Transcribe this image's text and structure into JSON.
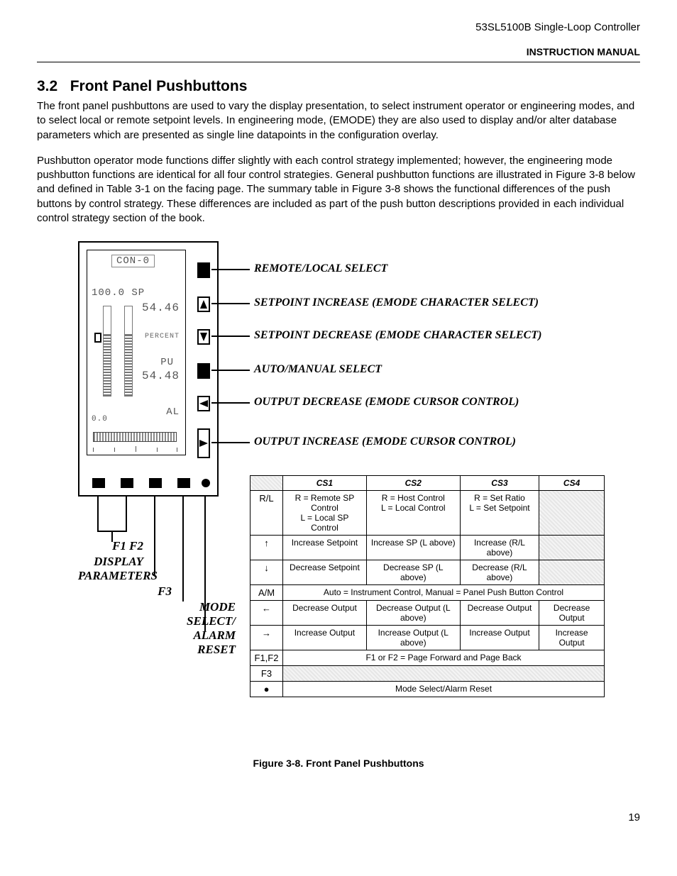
{
  "header": {
    "product": "53SL5100B Single-Loop Controller",
    "doc_type": "INSTRUCTION MANUAL"
  },
  "section": {
    "number": "3.2",
    "title": "Front Panel Pushbuttons",
    "para1": "The front panel pushbuttons are used to vary the display presentation, to select instrument operator or engineering modes, and to select local or remote setpoint levels. In engineering mode, (EMODE) they are also used to display and/or alter database parameters which are presented as single line datapoints in the configuration overlay.",
    "para2": "Pushbutton operator mode functions differ slightly with each control strategy implemented; however, the engineering mode pushbutton functions are identical for all four control strategies. General pushbutton functions are illustrated in Figure 3-8 below and defined in Table 3-1 on the facing page. The summary table in Figure 3-8 shows the functional differences of the push buttons by control strategy. These differences are included as part of the push button descriptions provided in each individual control strategy section of the book."
  },
  "lcd": {
    "top": "CON-0",
    "l1": "100.0   SP",
    "l2": "54.46",
    "percent": "PERCENT",
    "pu": "PU",
    "pv": "54.48",
    "al": "AL",
    "zero": "0.0"
  },
  "annotations": {
    "a1": "REMOTE/LOCAL SELECT",
    "a2": "SETPOINT INCREASE  (EMODE CHARACTER SELECT)",
    "a3": "SETPOINT DECREASE (EMODE CHARACTER SELECT)",
    "a4": "AUTO/MANUAL SELECT",
    "a5": "OUTPUT DECREASE (EMODE CURSOR CONTROL)",
    "a6": "OUTPUT INCREASE (EMODE CURSOR CONTROL)"
  },
  "left_labels": {
    "f1f2": "F1   F2",
    "display": "DISPLAY",
    "params": "PARAMETERS",
    "f3": "F3",
    "mode": "MODE",
    "select": "SELECT/",
    "alarm": "ALARM",
    "reset": "RESET"
  },
  "table": {
    "headers": [
      "",
      "CS1",
      "CS2",
      "CS3",
      "CS4"
    ],
    "rows": [
      {
        "k": "R/L",
        "c1": "R = Remote SP Control\nL = Local SP Control",
        "c2": "R = Host Control\nL = Local Control",
        "c3": "R = Set  Ratio\nL = Set Setpoint",
        "c4_shaded": true
      },
      {
        "k": "↑",
        "c1": "Increase Setpoint",
        "c2": "Increase SP (L above)",
        "c3": "Increase (R/L above)",
        "c4_shaded": true
      },
      {
        "k": "↓",
        "c1": "Decrease Setpoint",
        "c2": "Decrease SP (L above)",
        "c3": "Decrease (R/L above)",
        "c4_shaded": true
      },
      {
        "k": "A/M",
        "span": "Auto = Instrument Control,  Manual = Panel Push Button Control"
      },
      {
        "k": "←",
        "c1": "Decrease Output",
        "c2": "Decrease Output (L above)",
        "c3": "Decrease Output",
        "c4": "Decrease Output"
      },
      {
        "k": "→",
        "c1": "Increase Output",
        "c2": "Increase Output (L above)",
        "c3": "Increase Output",
        "c4": "Increase Output"
      },
      {
        "k": "F1,F2",
        "span": "F1 or F2 = Page Forward and Page Back"
      },
      {
        "k": "F3",
        "span_shaded": true
      },
      {
        "k": "●",
        "span": "Mode Select/Alarm Reset"
      }
    ]
  },
  "caption": "Figure 3-8. Front Panel Pushbuttons",
  "page": "19"
}
